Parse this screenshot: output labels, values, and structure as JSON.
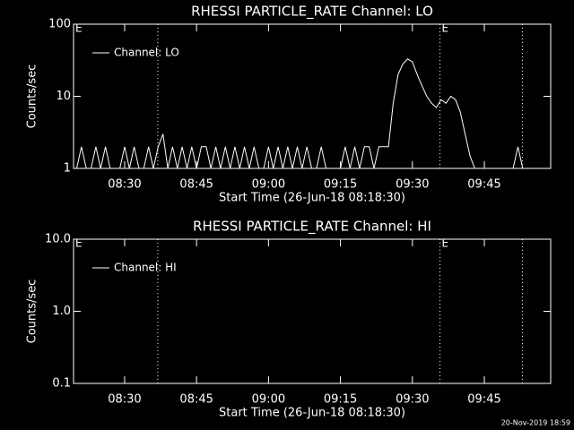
{
  "chart_data": [
    {
      "type": "line",
      "title": "RHESSI PARTICLE_RATE Channel: LO",
      "xlabel": "Start Time (26-Jun-18 08:18:30)",
      "ylabel": "Counts/sec",
      "log_y": true,
      "ylim": [
        1,
        100
      ],
      "yticks": [
        1,
        10,
        100
      ],
      "xlim": [
        "08:19:21",
        "09:58:50"
      ],
      "xticks": [
        "08:30",
        "08:45",
        "09:00",
        "09:15",
        "09:30",
        "09:45"
      ],
      "vlines": [
        "08:36:55",
        "09:35:45",
        "09:52:56"
      ],
      "markers": [
        {
          "x": "08:19:21",
          "label": "E"
        },
        {
          "x": "09:35:45",
          "label": "E"
        }
      ],
      "legend": "upper left",
      "x": [
        "08:20",
        "08:21",
        "08:22",
        "08:23",
        "08:24",
        "08:25",
        "08:26",
        "08:27",
        "08:28",
        "08:29",
        "08:30",
        "08:31",
        "08:32",
        "08:33",
        "08:34",
        "08:35",
        "08:36",
        "08:37",
        "08:38",
        "08:39",
        "08:40",
        "08:41",
        "08:42",
        "08:43",
        "08:44",
        "08:45",
        "08:46",
        "08:47",
        "08:48",
        "08:49",
        "08:50",
        "08:51",
        "08:52",
        "08:53",
        "08:54",
        "08:55",
        "08:56",
        "08:57",
        "08:58",
        "08:59",
        "09:00",
        "09:01",
        "09:02",
        "09:03",
        "09:04",
        "09:05",
        "09:06",
        "09:07",
        "09:08",
        "09:09",
        "09:10",
        "09:11",
        "09:12",
        "09:13",
        "09:14",
        "09:15",
        "09:16",
        "09:17",
        "09:18",
        "09:19",
        "09:20",
        "09:21",
        "09:22",
        "09:23",
        "09:24",
        "09:25",
        "09:26",
        "09:27",
        "09:28",
        "09:29",
        "09:30",
        "09:31",
        "09:32",
        "09:33",
        "09:34",
        "09:35",
        "09:36",
        "09:37",
        "09:38",
        "09:39",
        "09:40",
        "09:41",
        "09:42",
        "09:43",
        "09:44",
        "09:45",
        "09:46",
        "09:47",
        "09:48",
        "09:49",
        "09:50",
        "09:51",
        "09:52",
        "09:53",
        "09:54",
        "09:55",
        "09:56",
        "09:57",
        "09:58"
      ],
      "series": [
        {
          "name": "Channel: LO",
          "color": "#ffffff",
          "values": [
            1,
            2,
            1,
            1,
            2,
            1,
            2,
            1,
            1,
            1,
            2,
            1,
            2,
            1,
            1,
            2,
            1,
            2,
            3,
            1,
            2,
            1,
            2,
            1,
            2,
            1,
            2,
            2,
            1,
            2,
            1,
            2,
            1,
            2,
            1,
            2,
            1,
            2,
            1,
            1,
            2,
            1,
            2,
            1,
            2,
            1,
            2,
            1,
            2,
            1,
            1,
            2,
            1,
            1,
            1,
            1,
            2,
            1,
            2,
            1,
            2,
            2,
            1,
            2,
            2,
            2,
            8,
            20,
            28,
            33,
            30,
            20,
            14,
            10,
            8,
            7,
            9,
            8,
            10,
            9,
            6,
            3,
            1.5,
            1,
            1,
            1,
            1,
            1,
            1,
            1,
            1,
            1,
            2,
            1,
            1,
            1,
            1,
            1,
            1
          ]
        }
      ]
    },
    {
      "type": "line",
      "title": "RHESSI PARTICLE_RATE Channel: HI",
      "xlabel": "Start Time (26-Jun-18 08:18:30)",
      "ylabel": "Counts/sec",
      "log_y": true,
      "ylim": [
        0.1,
        10
      ],
      "yticks": [
        0.1,
        {
          "value": 1,
          "label": "1.0"
        },
        {
          "value": 10,
          "label": "10.0"
        }
      ],
      "xlim": [
        "08:19:21",
        "09:58:50"
      ],
      "xticks": [
        "08:30",
        "08:45",
        "09:00",
        "09:15",
        "09:30",
        "09:45"
      ],
      "vlines": [
        "08:36:55",
        "09:35:45",
        "09:52:56"
      ],
      "markers": [
        {
          "x": "08:19:21",
          "label": "E"
        },
        {
          "x": "09:35:45",
          "label": "E"
        }
      ],
      "legend": "upper left",
      "x": [],
      "series": [
        {
          "name": "Channel: HI",
          "color": "#ffffff",
          "values": []
        }
      ]
    }
  ],
  "footer": "20-Nov-2019 18:59"
}
